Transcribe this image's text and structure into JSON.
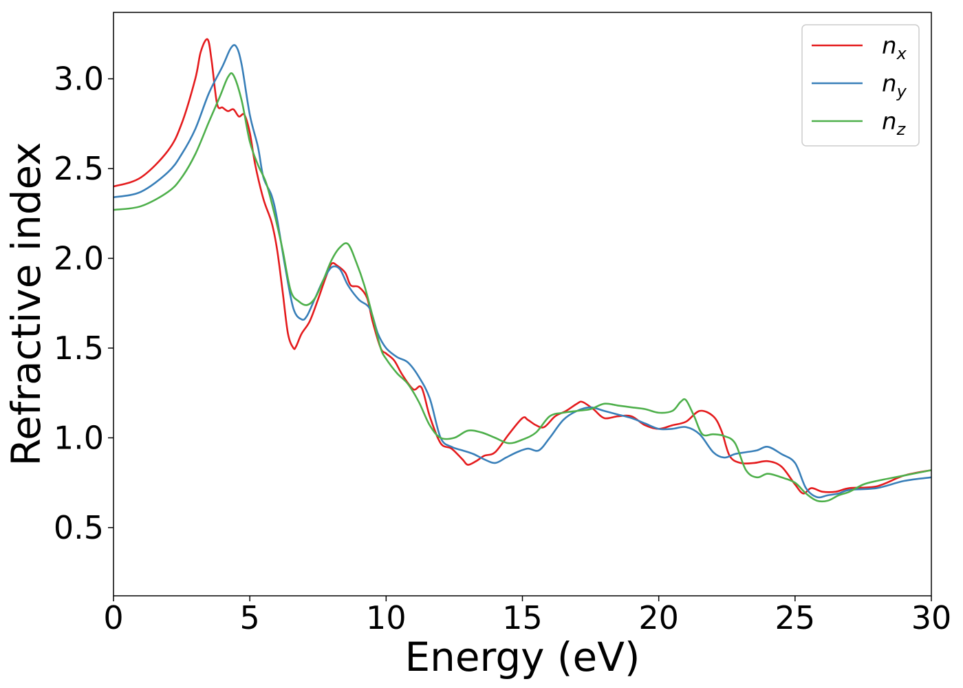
{
  "chart_data": {
    "type": "line",
    "title": "",
    "xlabel": "Energy (eV)",
    "ylabel": "Refractive index",
    "xlim": [
      0,
      30
    ],
    "ylim": [
      0.12,
      3.37
    ],
    "xticks": [
      0,
      5,
      10,
      15,
      20,
      25,
      30
    ],
    "xtick_labels": [
      "0",
      "5",
      "10",
      "15",
      "20",
      "25",
      "30"
    ],
    "yticks": [
      0.5,
      1.0,
      1.5,
      2.0,
      2.5,
      3.0
    ],
    "ytick_labels": [
      "0.5",
      "1.0",
      "1.5",
      "2.0",
      "2.5",
      "3.0"
    ],
    "grid": false,
    "legend_position": "top-right",
    "series": [
      {
        "name": "n",
        "subscript": "x",
        "color": "#e41a1c",
        "x": [
          0,
          1,
          2,
          2.5,
          3,
          3.2,
          3.45,
          3.6,
          3.8,
          4.0,
          4.2,
          4.4,
          4.6,
          4.8,
          5.0,
          5.2,
          5.5,
          5.8,
          6.0,
          6.2,
          6.4,
          6.6,
          6.7,
          6.9,
          7.2,
          7.5,
          7.8,
          8.0,
          8.2,
          8.5,
          8.7,
          9.0,
          9.3,
          9.5,
          9.8,
          10.0,
          10.3,
          10.6,
          11.0,
          11.3,
          11.6,
          12.0,
          12.4,
          12.8,
          13.0,
          13.3,
          13.6,
          14.0,
          14.5,
          15.0,
          15.2,
          15.5,
          15.8,
          16.2,
          16.6,
          17.0,
          17.2,
          17.6,
          18.0,
          18.5,
          19.0,
          19.5,
          20.0,
          20.5,
          21.0,
          21.5,
          22.0,
          22.3,
          22.6,
          23.0,
          23.5,
          24.0,
          24.5,
          25.0,
          25.3,
          25.6,
          26.0,
          26.5,
          27.0,
          28.0,
          29.0,
          30.0
        ],
        "y": [
          2.4,
          2.45,
          2.6,
          2.75,
          3.0,
          3.15,
          3.22,
          3.1,
          2.86,
          2.84,
          2.82,
          2.83,
          2.79,
          2.8,
          2.7,
          2.52,
          2.33,
          2.2,
          2.05,
          1.82,
          1.58,
          1.5,
          1.51,
          1.58,
          1.65,
          1.77,
          1.9,
          1.97,
          1.96,
          1.92,
          1.85,
          1.84,
          1.78,
          1.65,
          1.5,
          1.47,
          1.43,
          1.35,
          1.27,
          1.28,
          1.12,
          0.97,
          0.94,
          0.88,
          0.85,
          0.87,
          0.9,
          0.92,
          1.02,
          1.11,
          1.1,
          1.07,
          1.06,
          1.12,
          1.15,
          1.19,
          1.2,
          1.16,
          1.11,
          1.12,
          1.12,
          1.07,
          1.05,
          1.07,
          1.09,
          1.15,
          1.12,
          1.04,
          0.9,
          0.86,
          0.86,
          0.87,
          0.84,
          0.74,
          0.69,
          0.72,
          0.7,
          0.7,
          0.72,
          0.73,
          0.79,
          0.82
        ]
      },
      {
        "name": "n",
        "subscript": "y",
        "color": "#377eb8",
        "x": [
          0,
          1,
          2,
          2.5,
          3,
          3.5,
          4.0,
          4.3,
          4.5,
          4.7,
          5.0,
          5.3,
          5.5,
          5.8,
          6.0,
          6.3,
          6.6,
          6.9,
          7.1,
          7.4,
          7.7,
          8.0,
          8.3,
          8.6,
          9.0,
          9.4,
          9.7,
          10.0,
          10.4,
          10.8,
          11.2,
          11.6,
          12.0,
          12.4,
          12.8,
          13.2,
          13.6,
          14.0,
          14.4,
          14.8,
          15.2,
          15.6,
          16.0,
          16.5,
          17.0,
          17.5,
          18.0,
          18.5,
          19.0,
          19.5,
          20.0,
          20.5,
          21.0,
          21.5,
          22.0,
          22.4,
          22.8,
          23.2,
          23.6,
          24.0,
          24.5,
          25.0,
          25.4,
          25.8,
          26.2,
          26.6,
          27.0,
          28.0,
          29.0,
          30.0
        ],
        "y": [
          2.34,
          2.37,
          2.48,
          2.58,
          2.72,
          2.92,
          3.07,
          3.17,
          3.18,
          3.08,
          2.8,
          2.62,
          2.45,
          2.35,
          2.22,
          1.95,
          1.72,
          1.66,
          1.68,
          1.78,
          1.88,
          1.95,
          1.94,
          1.85,
          1.77,
          1.72,
          1.58,
          1.5,
          1.45,
          1.42,
          1.34,
          1.22,
          1.0,
          0.95,
          0.93,
          0.91,
          0.88,
          0.86,
          0.89,
          0.92,
          0.94,
          0.93,
          1.0,
          1.1,
          1.15,
          1.17,
          1.15,
          1.13,
          1.11,
          1.08,
          1.05,
          1.05,
          1.06,
          1.02,
          0.92,
          0.89,
          0.91,
          0.92,
          0.93,
          0.95,
          0.91,
          0.86,
          0.72,
          0.67,
          0.68,
          0.69,
          0.71,
          0.72,
          0.76,
          0.78
        ]
      },
      {
        "name": "n",
        "subscript": "z",
        "color": "#4daf4a",
        "x": [
          0,
          1,
          2,
          2.5,
          3,
          3.5,
          3.9,
          4.2,
          4.4,
          4.7,
          5.0,
          5.3,
          5.6,
          5.9,
          6.2,
          6.5,
          6.8,
          7.1,
          7.4,
          7.7,
          8.0,
          8.3,
          8.6,
          8.9,
          9.2,
          9.5,
          9.8,
          10.0,
          10.4,
          10.8,
          11.2,
          11.6,
          12.0,
          12.5,
          13.0,
          13.5,
          14.0,
          14.5,
          15.0,
          15.5,
          16.0,
          16.5,
          17.0,
          17.5,
          18.0,
          18.5,
          19.0,
          19.5,
          20.0,
          20.5,
          20.8,
          21.0,
          21.3,
          21.6,
          22.0,
          22.4,
          22.8,
          23.2,
          23.6,
          24.0,
          24.5,
          25.0,
          25.4,
          25.8,
          26.2,
          26.6,
          27.0,
          27.5,
          28.0,
          29.0,
          30.0
        ],
        "y": [
          2.27,
          2.29,
          2.37,
          2.45,
          2.58,
          2.76,
          2.9,
          3.01,
          3.02,
          2.88,
          2.65,
          2.52,
          2.42,
          2.25,
          2.05,
          1.82,
          1.76,
          1.74,
          1.78,
          1.88,
          1.99,
          2.06,
          2.08,
          1.98,
          1.85,
          1.68,
          1.5,
          1.44,
          1.36,
          1.3,
          1.2,
          1.07,
          1.0,
          1.0,
          1.04,
          1.03,
          1.0,
          0.97,
          0.99,
          1.03,
          1.12,
          1.14,
          1.15,
          1.16,
          1.19,
          1.18,
          1.17,
          1.16,
          1.14,
          1.15,
          1.2,
          1.21,
          1.12,
          1.02,
          1.02,
          1.01,
          0.97,
          0.82,
          0.78,
          0.8,
          0.78,
          0.75,
          0.69,
          0.65,
          0.65,
          0.68,
          0.7,
          0.74,
          0.76,
          0.79,
          0.82
        ]
      }
    ]
  }
}
